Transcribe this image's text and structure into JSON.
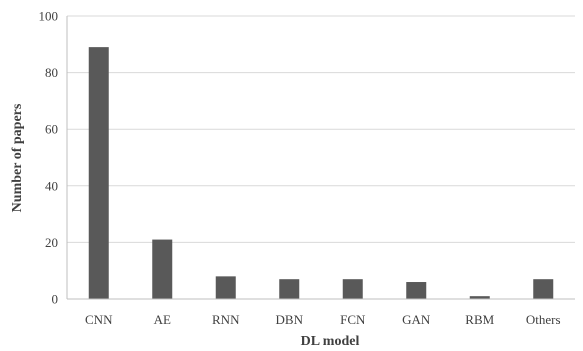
{
  "chart_data": {
    "type": "bar",
    "categories": [
      "CNN",
      "AE",
      "RNN",
      "DBN",
      "FCN",
      "GAN",
      "RBM",
      "Others"
    ],
    "values": [
      89,
      21,
      8,
      7,
      7,
      6,
      1,
      7
    ],
    "xlabel": "DL model",
    "ylabel": "Number of papers",
    "ylim": [
      0,
      100
    ],
    "yticks": [
      0,
      20,
      40,
      60,
      80,
      100
    ],
    "grid": true,
    "legend": "none",
    "colors": {
      "bar": "#595959",
      "grid": "#d9d9d9",
      "axis": "#bfbfbf",
      "text": "#404040"
    }
  }
}
